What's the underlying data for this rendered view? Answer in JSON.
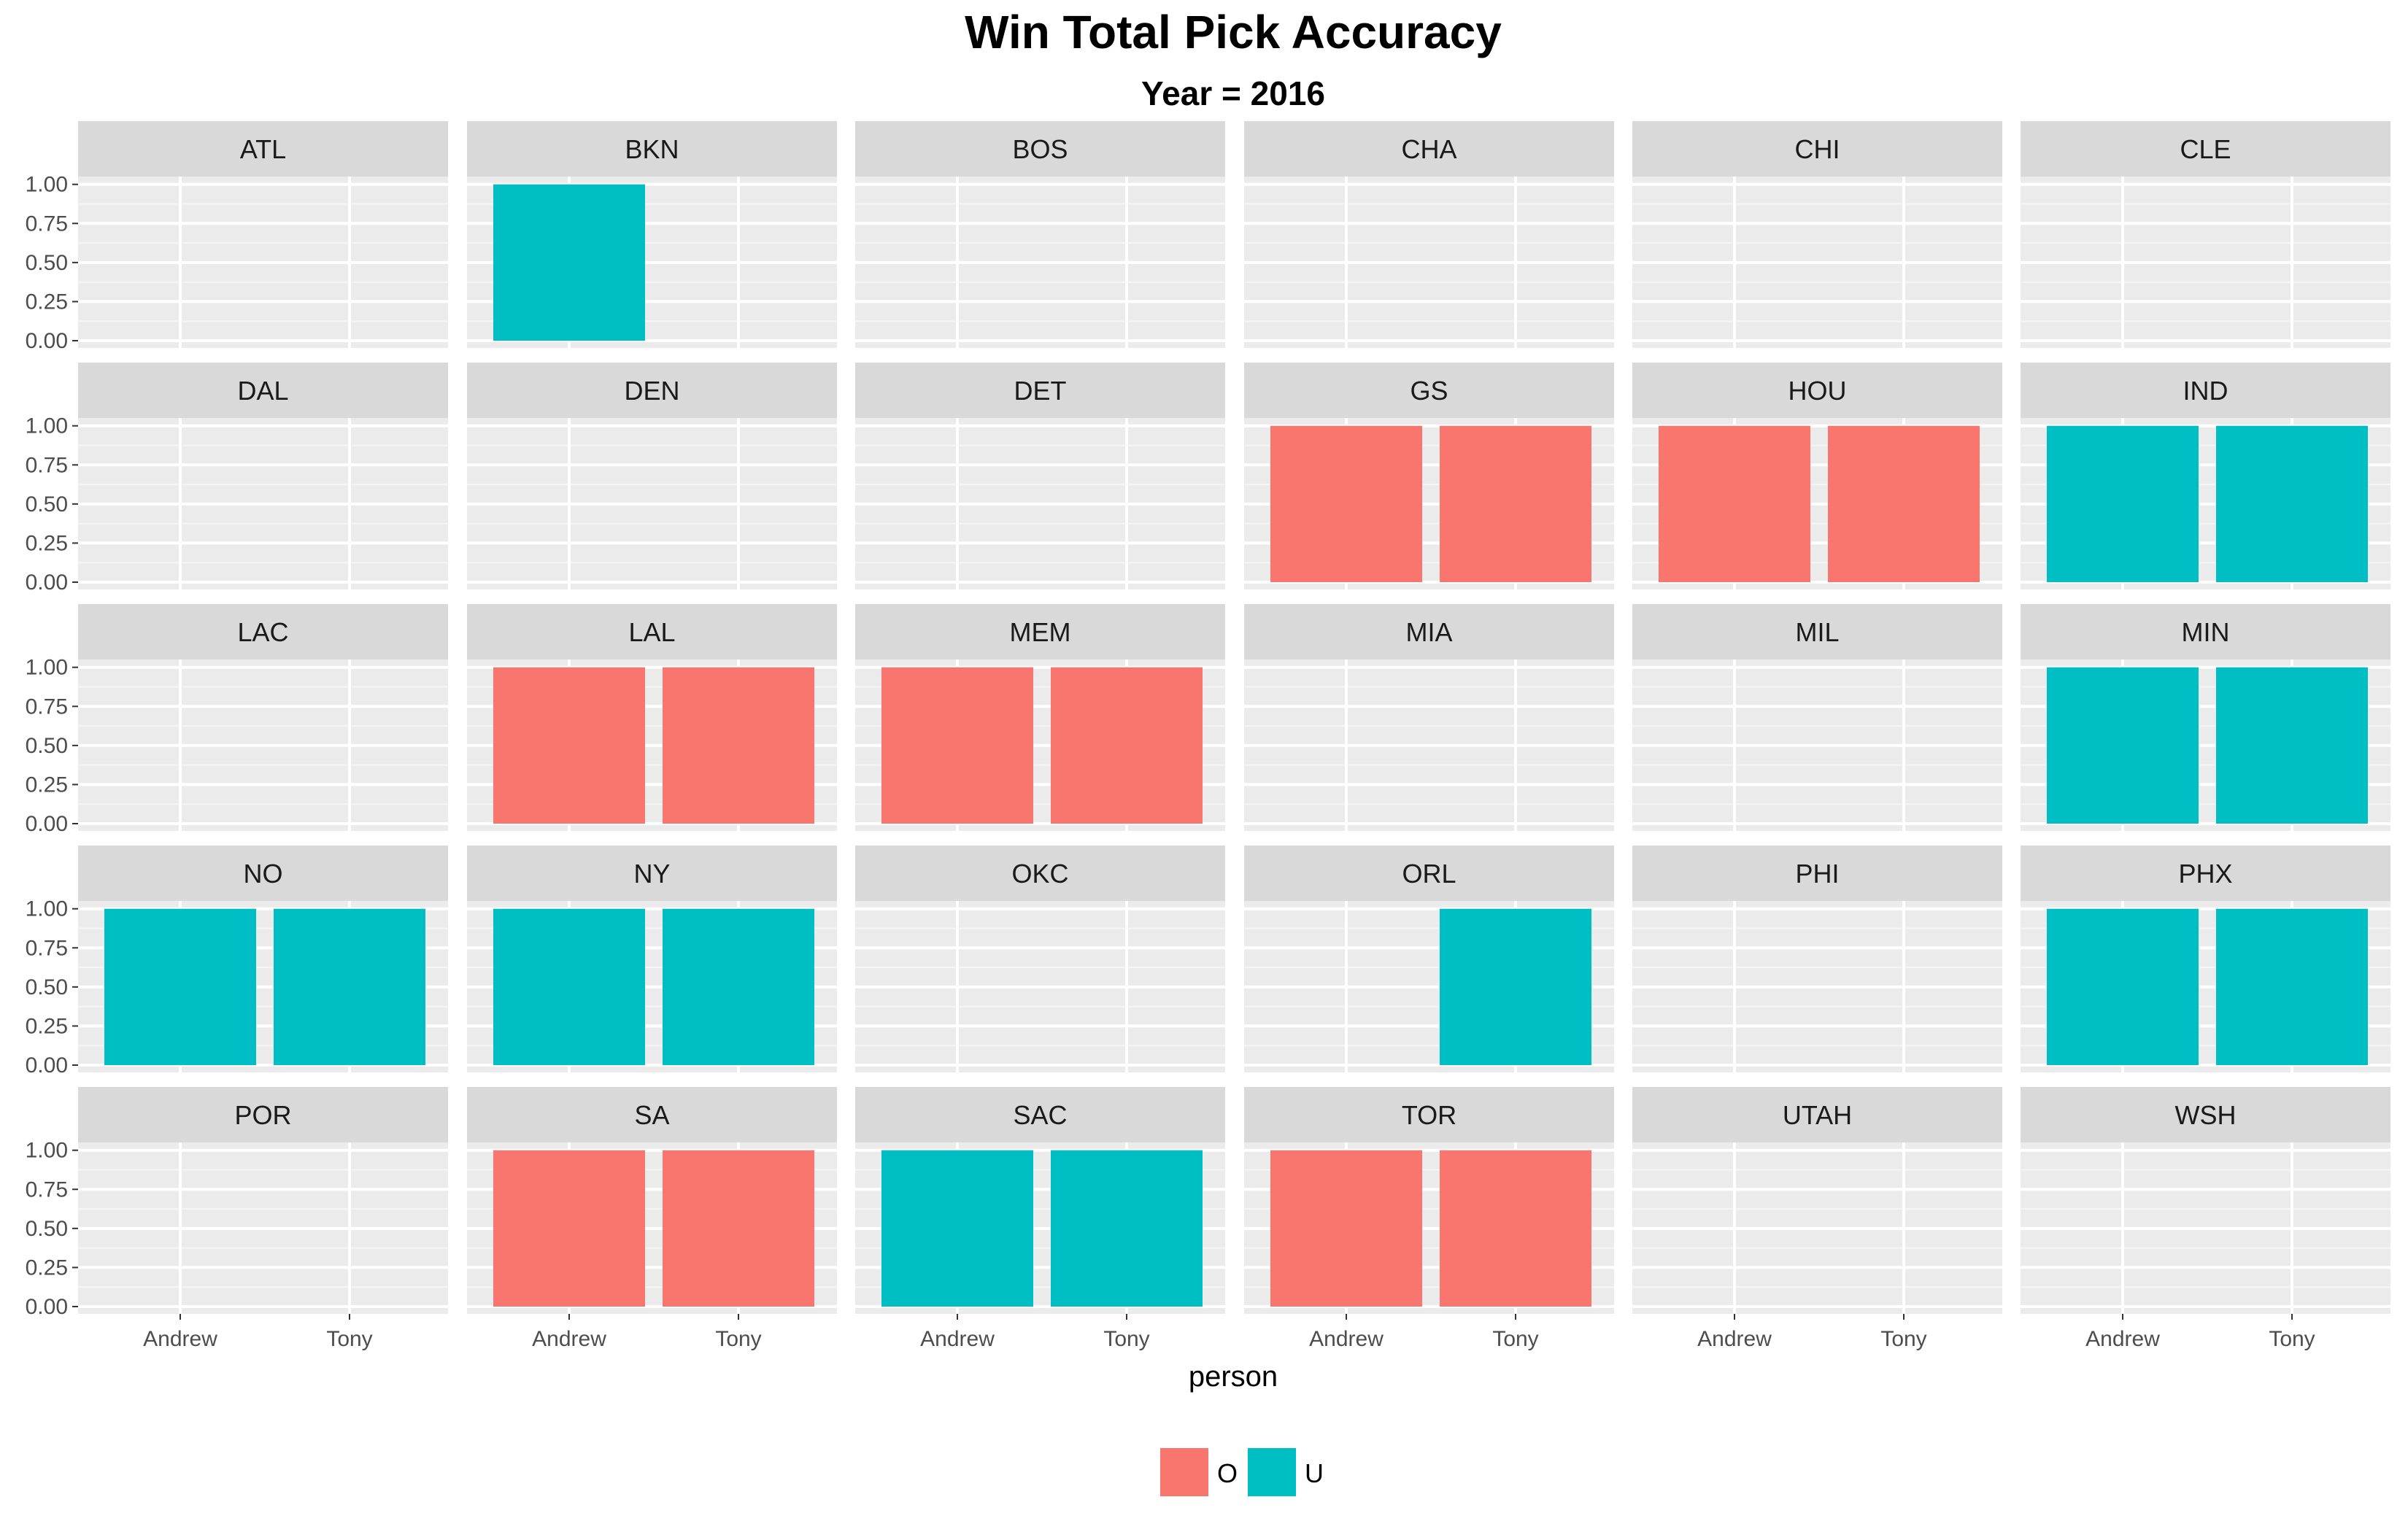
{
  "chart_data": {
    "type": "bar",
    "title": "Win Total Pick Accuracy",
    "subtitle": "Year = 2016",
    "xlabel": "person",
    "ylabel": "",
    "categories": [
      "Andrew",
      "Tony"
    ],
    "ylim": [
      0,
      1.05
    ],
    "y_ticks": [
      "0.00",
      "0.25",
      "0.50",
      "0.75",
      "1.00"
    ],
    "grid": true,
    "facet_layout": {
      "rows": 5,
      "cols": 6
    },
    "legend": {
      "position": "bottom",
      "entries": [
        {
          "key": "O",
          "label": "O",
          "color": "#F8766D"
        },
        {
          "key": "U",
          "label": "U",
          "color": "#00BFC4"
        }
      ]
    },
    "panels": [
      {
        "team": "ATL",
        "bars": []
      },
      {
        "team": "BKN",
        "bars": [
          {
            "person": "Andrew",
            "value": 1,
            "fill": "U"
          }
        ]
      },
      {
        "team": "BOS",
        "bars": []
      },
      {
        "team": "CHA",
        "bars": []
      },
      {
        "team": "CHI",
        "bars": []
      },
      {
        "team": "CLE",
        "bars": []
      },
      {
        "team": "DAL",
        "bars": []
      },
      {
        "team": "DEN",
        "bars": []
      },
      {
        "team": "DET",
        "bars": []
      },
      {
        "team": "GS",
        "bars": [
          {
            "person": "Andrew",
            "value": 1,
            "fill": "O"
          },
          {
            "person": "Tony",
            "value": 1,
            "fill": "O"
          }
        ]
      },
      {
        "team": "HOU",
        "bars": [
          {
            "person": "Andrew",
            "value": 1,
            "fill": "O"
          },
          {
            "person": "Tony",
            "value": 1,
            "fill": "O"
          }
        ]
      },
      {
        "team": "IND",
        "bars": [
          {
            "person": "Andrew",
            "value": 1,
            "fill": "U"
          },
          {
            "person": "Tony",
            "value": 1,
            "fill": "U"
          }
        ]
      },
      {
        "team": "LAC",
        "bars": []
      },
      {
        "team": "LAL",
        "bars": [
          {
            "person": "Andrew",
            "value": 1,
            "fill": "O"
          },
          {
            "person": "Tony",
            "value": 1,
            "fill": "O"
          }
        ]
      },
      {
        "team": "MEM",
        "bars": [
          {
            "person": "Andrew",
            "value": 1,
            "fill": "O"
          },
          {
            "person": "Tony",
            "value": 1,
            "fill": "O"
          }
        ]
      },
      {
        "team": "MIA",
        "bars": []
      },
      {
        "team": "MIL",
        "bars": []
      },
      {
        "team": "MIN",
        "bars": [
          {
            "person": "Andrew",
            "value": 1,
            "fill": "U"
          },
          {
            "person": "Tony",
            "value": 1,
            "fill": "U"
          }
        ]
      },
      {
        "team": "NO",
        "bars": [
          {
            "person": "Andrew",
            "value": 1,
            "fill": "U"
          },
          {
            "person": "Tony",
            "value": 1,
            "fill": "U"
          }
        ]
      },
      {
        "team": "NY",
        "bars": [
          {
            "person": "Andrew",
            "value": 1,
            "fill": "U"
          },
          {
            "person": "Tony",
            "value": 1,
            "fill": "U"
          }
        ]
      },
      {
        "team": "OKC",
        "bars": []
      },
      {
        "team": "ORL",
        "bars": [
          {
            "person": "Tony",
            "value": 1,
            "fill": "U"
          }
        ]
      },
      {
        "team": "PHI",
        "bars": []
      },
      {
        "team": "PHX",
        "bars": [
          {
            "person": "Andrew",
            "value": 1,
            "fill": "U"
          },
          {
            "person": "Tony",
            "value": 1,
            "fill": "U"
          }
        ]
      },
      {
        "team": "POR",
        "bars": []
      },
      {
        "team": "SA",
        "bars": [
          {
            "person": "Andrew",
            "value": 1,
            "fill": "O"
          },
          {
            "person": "Tony",
            "value": 1,
            "fill": "O"
          }
        ]
      },
      {
        "team": "SAC",
        "bars": [
          {
            "person": "Andrew",
            "value": 1,
            "fill": "U"
          },
          {
            "person": "Tony",
            "value": 1,
            "fill": "U"
          }
        ]
      },
      {
        "team": "TOR",
        "bars": [
          {
            "person": "Andrew",
            "value": 1,
            "fill": "O"
          },
          {
            "person": "Tony",
            "value": 1,
            "fill": "O"
          }
        ]
      },
      {
        "team": "UTAH",
        "bars": []
      },
      {
        "team": "WSH",
        "bars": []
      }
    ]
  }
}
